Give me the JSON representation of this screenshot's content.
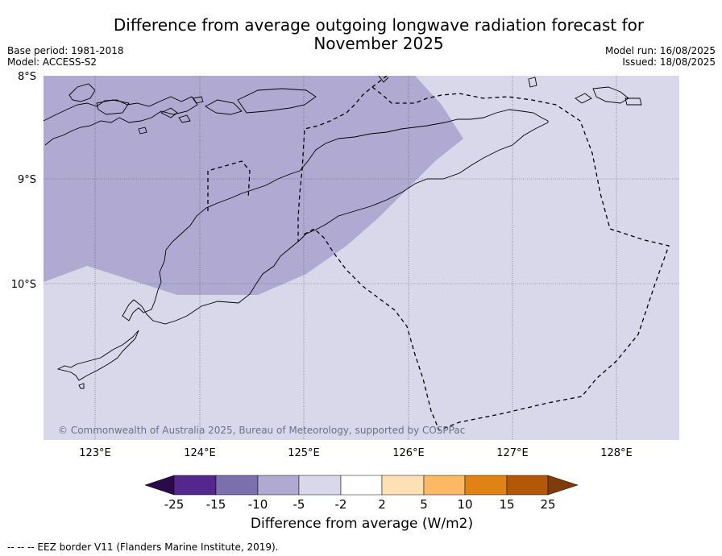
{
  "title": "Difference from average outgoing longwave radiation forecast for November 2025",
  "meta_left": [
    "Base period: 1981-2018",
    "Model: ACCESS-S2"
  ],
  "meta_right": [
    "Model run: 16/08/2025",
    "Issued: 18/08/2025"
  ],
  "map": {
    "lat_labels": [
      "8°S",
      "9°S",
      "10°S"
    ],
    "lon_labels": [
      "123°E",
      "124°E",
      "125°E",
      "126°E",
      "127°E",
      "128°E"
    ],
    "copyright": "© Commonwealth of Australia 2025, Bureau of Meteorology, supported by COSPPac",
    "region_colors": {
      "minus_5_to_minus_2": "#d8d8ea",
      "minus_10_to_minus_5": "#b0aad2"
    }
  },
  "colorbar": {
    "ticks": [
      "-25",
      "-15",
      "-10",
      "-5",
      "-2",
      "2",
      "5",
      "10",
      "15",
      "25"
    ],
    "colors": [
      "#2b0a4a",
      "#54278f",
      "#7c6fae",
      "#b0aad2",
      "#d8d8ea",
      "#ffffff",
      "#fde0b4",
      "#fdb863",
      "#e08214",
      "#b35806",
      "#7f3b08"
    ],
    "title": "Difference from average (W/m2)"
  },
  "footnote": "--  --  -- EEZ border V11 (Flanders Marine Institute, 2019)."
}
